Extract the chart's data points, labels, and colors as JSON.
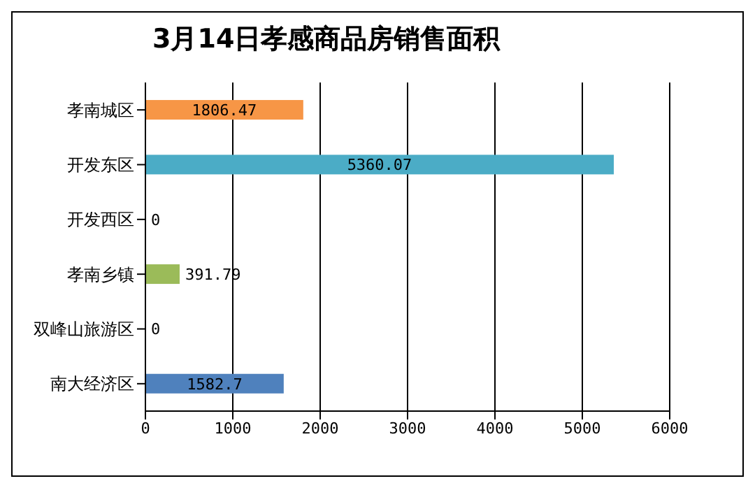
{
  "chart_data": {
    "type": "bar",
    "orientation": "horizontal",
    "title": "3月14日孝感商品房销售面积",
    "categories": [
      "孝南城区",
      "开发东区",
      "开发西区",
      "孝南乡镇",
      "双峰山旅游区",
      "南大经济区"
    ],
    "values": [
      1806.47,
      5360.07,
      0,
      391.79,
      0,
      1582.7
    ],
    "colors": [
      "#f79646",
      "#4bacc6",
      "#8064a2",
      "#9bbb59",
      "#c0504d",
      "#4f81bd"
    ],
    "xlim": [
      0,
      6000
    ],
    "xticks": [
      0,
      1000,
      2000,
      3000,
      4000,
      5000,
      6000
    ],
    "grid": "x",
    "data_labels": true
  }
}
